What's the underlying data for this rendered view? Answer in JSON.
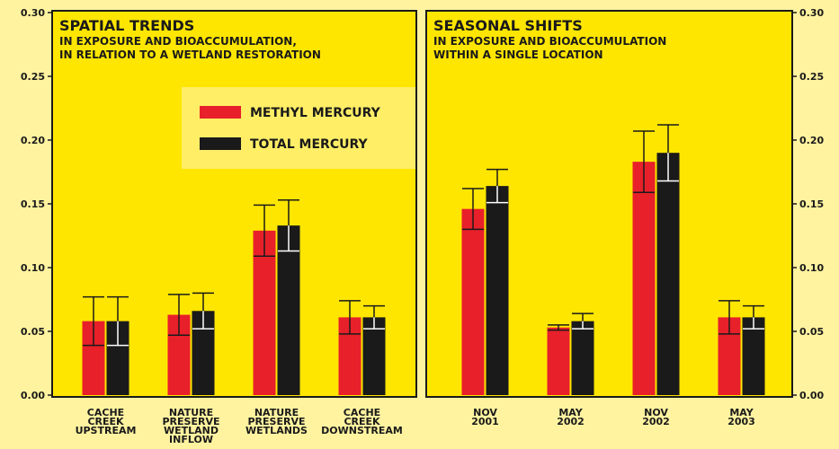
{
  "chart_data": [
    {
      "type": "bar",
      "title": "SPATIAL TRENDS",
      "subtitle": [
        "IN EXPOSURE AND BIOACCUMULATION,",
        "IN RELATION TO A WETLAND RESTORATION"
      ],
      "categories": [
        [
          "CACHE",
          "CREEK",
          "UPSTREAM"
        ],
        [
          "NATURE",
          "PRESERVE",
          "WETLAND",
          "INFLOW"
        ],
        [
          "NATURE",
          "PRESERVE",
          "WETLANDS"
        ],
        [
          "CACHE",
          "CREEK",
          "DOWNSTREAM"
        ]
      ],
      "series": [
        {
          "name": "METHYL MERCURY",
          "color": "#e8202a",
          "values": [
            0.058,
            0.063,
            0.129,
            0.061
          ],
          "errors": [
            0.019,
            0.016,
            0.02,
            0.013
          ]
        },
        {
          "name": "TOTAL MERCURY",
          "color": "#1a1a1a",
          "values": [
            0.058,
            0.066,
            0.133,
            0.061
          ],
          "errors": [
            0.019,
            0.014,
            0.02,
            0.009
          ]
        }
      ],
      "ylim": [
        0,
        0.3
      ],
      "yticks": [
        {
          "value": 0,
          "label": "0.00"
        },
        {
          "value": 0.05,
          "label": "0.05"
        },
        {
          "value": 0.1,
          "label": "0.10"
        },
        {
          "value": 0.15,
          "label": "0.15"
        },
        {
          "value": 0.2,
          "label": "0.20"
        },
        {
          "value": 0.25,
          "label": "0.25"
        },
        {
          "value": 0.3,
          "label": "0.30"
        }
      ],
      "yaxis_side": "left",
      "legend": "top-right"
    },
    {
      "type": "bar",
      "title": "SEASONAL SHIFTS",
      "subtitle": [
        "IN EXPOSURE AND BIOACCUMULATION",
        "WITHIN A SINGLE LOCATION"
      ],
      "categories": [
        [
          "NOV",
          "2001"
        ],
        [
          "MAY",
          "2002"
        ],
        [
          "NOV",
          "2002"
        ],
        [
          "MAY",
          "2003"
        ]
      ],
      "series": [
        {
          "name": "METHYL MERCURY",
          "color": "#e8202a",
          "values": [
            0.146,
            0.053,
            0.183,
            0.061
          ],
          "errors": [
            0.016,
            0.002,
            0.024,
            0.013
          ]
        },
        {
          "name": "TOTAL MERCURY",
          "color": "#1a1a1a",
          "values": [
            0.164,
            0.058,
            0.19,
            0.061
          ],
          "errors": [
            0.013,
            0.006,
            0.022,
            0.009
          ]
        }
      ],
      "ylim": [
        0,
        0.3
      ],
      "yticks": [
        {
          "value": 0,
          "label": "0.00"
        },
        {
          "value": 0.05,
          "label": "0.05"
        },
        {
          "value": 0.1,
          "label": "0.10"
        },
        {
          "value": 0.15,
          "label": "0.15"
        },
        {
          "value": 0.2,
          "label": "0.20"
        },
        {
          "value": 0.25,
          "label": "0.25"
        },
        {
          "value": 0.3,
          "label": "0.30"
        }
      ],
      "yaxis_side": "right"
    }
  ]
}
